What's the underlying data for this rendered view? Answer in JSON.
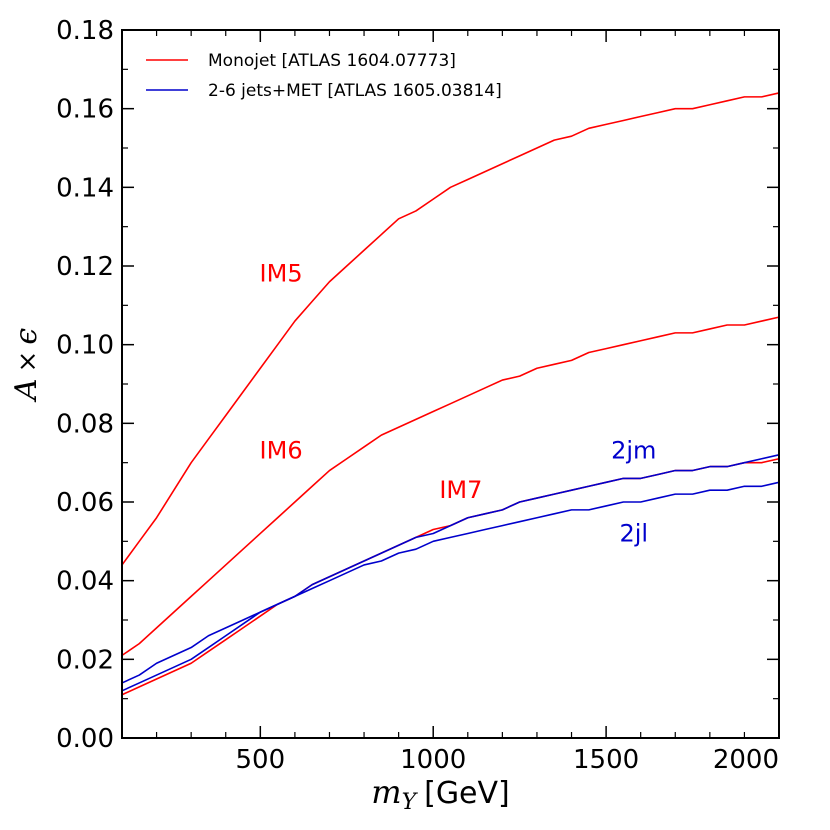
{
  "chart_data": {
    "type": "line",
    "title": "",
    "xlabel": "m_Y [GeV]",
    "xlabel_var": "m",
    "xlabel_sub": "Y",
    "xlabel_unit": "[GeV]",
    "ylabel": "A × ε",
    "ylabel_var1": "A",
    "ylabel_times": "×",
    "ylabel_var2": "ϵ",
    "xlim": [
      100,
      2000
    ],
    "ylim": [
      0.0,
      0.18
    ],
    "xticks": [
      500,
      1000,
      1500,
      2000
    ],
    "xtick_labels": [
      "500",
      "1000",
      "1500",
      "2000"
    ],
    "yticks": [
      0.0,
      0.02,
      0.04,
      0.06,
      0.08,
      0.1,
      0.12,
      0.14,
      0.16,
      0.18
    ],
    "ytick_labels": [
      "0.00",
      "0.02",
      "0.04",
      "0.06",
      "0.08",
      "0.10",
      "0.12",
      "0.14",
      "0.16",
      "0.18"
    ],
    "grid": false,
    "legend_position": "top-left",
    "legend": [
      {
        "label": "Monojet [ATLAS 1604.07773]",
        "color": "#ff0000"
      },
      {
        "label": "2-6 jets+MET [ATLAS 1605.03814]",
        "color": "#0000cc"
      }
    ],
    "series": [
      {
        "name": "IM5",
        "group": "Monojet [ATLAS 1604.07773]",
        "color": "#ff0000",
        "x": [
          100,
          150,
          200,
          250,
          300,
          350,
          400,
          450,
          500,
          550,
          600,
          650,
          700,
          750,
          800,
          850,
          900,
          950,
          1000,
          1050,
          1100,
          1150,
          1200,
          1250,
          1300,
          1350,
          1400,
          1450,
          1500,
          1550,
          1600,
          1650,
          1700,
          1750,
          1800,
          1850,
          1900,
          1950,
          2000
        ],
        "y": [
          0.044,
          0.05,
          0.056,
          0.063,
          0.07,
          0.076,
          0.082,
          0.088,
          0.094,
          0.1,
          0.106,
          0.111,
          0.116,
          0.12,
          0.124,
          0.128,
          0.132,
          0.134,
          0.137,
          0.14,
          0.142,
          0.144,
          0.146,
          0.148,
          0.15,
          0.152,
          0.153,
          0.155,
          0.156,
          0.157,
          0.158,
          0.159,
          0.16,
          0.16,
          0.161,
          0.162,
          0.163,
          0.163,
          0.164
        ]
      },
      {
        "name": "IM6",
        "group": "Monojet [ATLAS 1604.07773]",
        "color": "#ff0000",
        "x": [
          100,
          150,
          200,
          250,
          300,
          350,
          400,
          450,
          500,
          550,
          600,
          650,
          700,
          750,
          800,
          850,
          900,
          950,
          1000,
          1050,
          1100,
          1150,
          1200,
          1250,
          1300,
          1350,
          1400,
          1450,
          1500,
          1550,
          1600,
          1650,
          1700,
          1750,
          1800,
          1850,
          1900,
          1950,
          2000
        ],
        "y": [
          0.021,
          0.024,
          0.028,
          0.032,
          0.036,
          0.04,
          0.044,
          0.048,
          0.052,
          0.056,
          0.06,
          0.064,
          0.068,
          0.071,
          0.074,
          0.077,
          0.079,
          0.081,
          0.083,
          0.085,
          0.087,
          0.089,
          0.091,
          0.092,
          0.094,
          0.095,
          0.096,
          0.098,
          0.099,
          0.1,
          0.101,
          0.102,
          0.103,
          0.103,
          0.104,
          0.105,
          0.105,
          0.106,
          0.107
        ]
      },
      {
        "name": "IM7",
        "group": "Monojet [ATLAS 1604.07773]",
        "color": "#ff0000",
        "x": [
          100,
          150,
          200,
          250,
          300,
          350,
          400,
          450,
          500,
          550,
          600,
          650,
          700,
          750,
          800,
          850,
          900,
          950,
          1000,
          1050,
          1100,
          1150,
          1200,
          1250,
          1300,
          1350,
          1400,
          1450,
          1500,
          1550,
          1600,
          1650,
          1700,
          1750,
          1800,
          1850,
          1900,
          1950,
          2000
        ],
        "y": [
          0.011,
          0.013,
          0.015,
          0.017,
          0.019,
          0.022,
          0.025,
          0.028,
          0.031,
          0.034,
          0.036,
          0.039,
          0.041,
          0.043,
          0.045,
          0.047,
          0.049,
          0.051,
          0.053,
          0.054,
          0.056,
          0.057,
          0.058,
          0.06,
          0.061,
          0.062,
          0.063,
          0.064,
          0.065,
          0.066,
          0.066,
          0.067,
          0.068,
          0.068,
          0.069,
          0.069,
          0.07,
          0.07,
          0.071
        ]
      },
      {
        "name": "2jm",
        "group": "2-6 jets+MET [ATLAS 1605.03814]",
        "color": "#0000cc",
        "x": [
          100,
          150,
          200,
          250,
          300,
          350,
          400,
          450,
          500,
          550,
          600,
          650,
          700,
          750,
          800,
          850,
          900,
          950,
          1000,
          1050,
          1100,
          1150,
          1200,
          1250,
          1300,
          1350,
          1400,
          1450,
          1500,
          1550,
          1600,
          1650,
          1700,
          1750,
          1800,
          1850,
          1900,
          1950,
          2000
        ],
        "y": [
          0.012,
          0.014,
          0.016,
          0.018,
          0.02,
          0.023,
          0.026,
          0.029,
          0.032,
          0.034,
          0.036,
          0.039,
          0.041,
          0.043,
          0.045,
          0.047,
          0.049,
          0.051,
          0.052,
          0.054,
          0.056,
          0.057,
          0.058,
          0.06,
          0.061,
          0.062,
          0.063,
          0.064,
          0.065,
          0.066,
          0.066,
          0.067,
          0.068,
          0.068,
          0.069,
          0.069,
          0.07,
          0.071,
          0.072
        ]
      },
      {
        "name": "2jl",
        "group": "2-6 jets+MET [ATLAS 1605.03814]",
        "color": "#0000cc",
        "x": [
          100,
          150,
          200,
          250,
          300,
          350,
          400,
          450,
          500,
          550,
          600,
          650,
          700,
          750,
          800,
          850,
          900,
          950,
          1000,
          1050,
          1100,
          1150,
          1200,
          1250,
          1300,
          1350,
          1400,
          1450,
          1500,
          1550,
          1600,
          1650,
          1700,
          1750,
          1800,
          1850,
          1900,
          1950,
          2000
        ],
        "y": [
          0.014,
          0.016,
          0.019,
          0.021,
          0.023,
          0.026,
          0.028,
          0.03,
          0.032,
          0.034,
          0.036,
          0.038,
          0.04,
          0.042,
          0.044,
          0.045,
          0.047,
          0.048,
          0.05,
          0.051,
          0.052,
          0.053,
          0.054,
          0.055,
          0.056,
          0.057,
          0.058,
          0.058,
          0.059,
          0.06,
          0.06,
          0.061,
          0.062,
          0.062,
          0.063,
          0.063,
          0.064,
          0.064,
          0.065
        ]
      }
    ],
    "annotations": [
      {
        "text": "IM5",
        "x": 560,
        "y": 0.116,
        "color": "#ff0000"
      },
      {
        "text": "IM6",
        "x": 560,
        "y": 0.071,
        "color": "#ff0000"
      },
      {
        "text": "IM7",
        "x": 1080,
        "y": 0.061,
        "color": "#ff0000"
      },
      {
        "text": "2jm",
        "x": 1580,
        "y": 0.071,
        "color": "#0000cc"
      },
      {
        "text": "2jl",
        "x": 1580,
        "y": 0.05,
        "color": "#0000cc"
      }
    ]
  }
}
